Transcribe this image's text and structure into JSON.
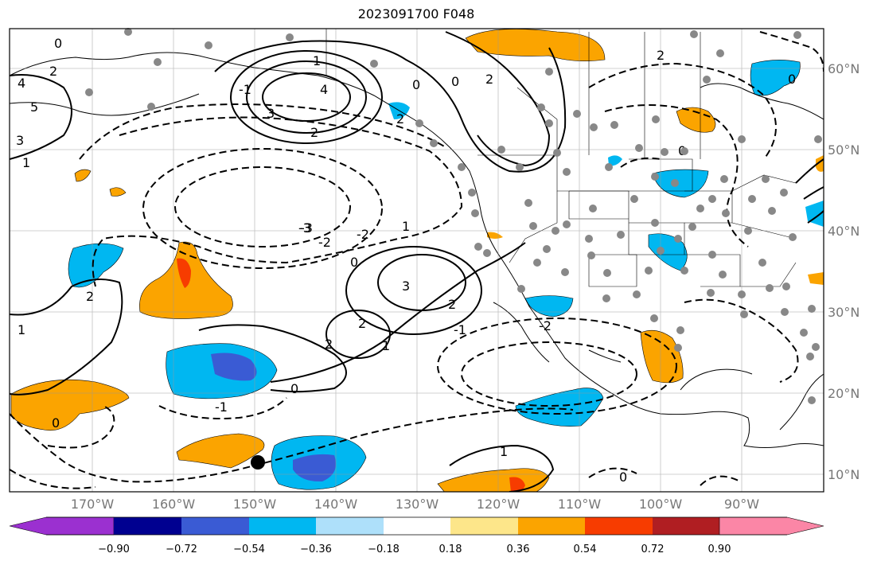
{
  "title": "2023091700 F048",
  "map": {
    "lat_labels": [
      "60°N",
      "50°N",
      "40°N",
      "30°N",
      "20°N",
      "10°N"
    ],
    "lon_labels": [
      "170°W",
      "160°W",
      "150°W",
      "140°W",
      "130°W",
      "120°W",
      "110°W",
      "100°W",
      "90°W"
    ],
    "contour_labels": [
      "0",
      "2",
      "4",
      "5",
      "3",
      "1",
      "-1",
      "-2",
      "-3",
      "2",
      "0",
      "1",
      "3",
      "2",
      "4",
      "0",
      "2",
      "1",
      "-2",
      "-3",
      "-1",
      "2",
      "0",
      "3",
      "2",
      "2",
      "1",
      "0",
      "1",
      "-1",
      "0",
      "1",
      "0",
      "-2",
      "2",
      "2",
      "0",
      "0"
    ],
    "marker": "storm-center"
  },
  "colorbar": {
    "colors": [
      "#9b30d0",
      "#000090",
      "#3a5bd4",
      "#00b7f1",
      "#aee0fa",
      "#ffffff",
      "#fde68a",
      "#fba400",
      "#f73c00",
      "#b01e22",
      "#fb86a6"
    ],
    "tick_labels": [
      "−0.90",
      "−0.72",
      "−0.54",
      "−0.36",
      "−0.18",
      "0.18",
      "0.36",
      "0.54",
      "0.72",
      "0.90"
    ]
  }
}
